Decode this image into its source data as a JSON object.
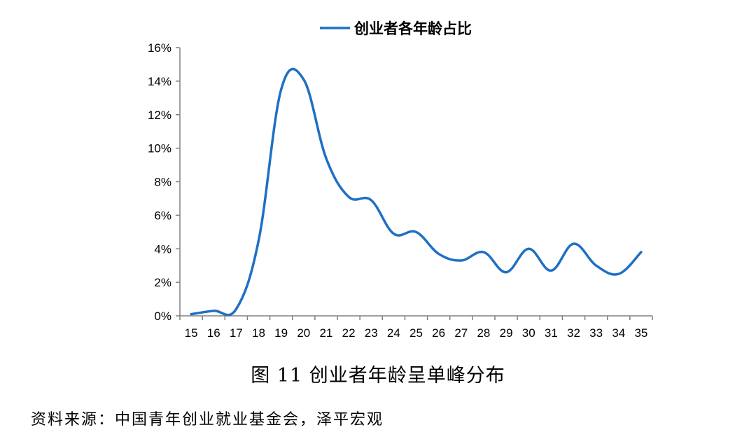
{
  "chart_data": {
    "type": "line",
    "title": "",
    "xlabel": "",
    "ylabel": "",
    "x": [
      15,
      16,
      17,
      18,
      19,
      20,
      21,
      22,
      23,
      24,
      25,
      26,
      27,
      28,
      29,
      30,
      31,
      32,
      33,
      34,
      35
    ],
    "x_tick_labels": [
      "15",
      "16",
      "17",
      "18",
      "19",
      "20",
      "21",
      "22",
      "23",
      "24",
      "25",
      "26",
      "27",
      "28",
      "29",
      "30",
      "31",
      "32",
      "33",
      "34",
      "35"
    ],
    "ylim": [
      0,
      16
    ],
    "y_ticks": [
      0,
      2,
      4,
      6,
      8,
      10,
      12,
      14,
      16
    ],
    "y_tick_labels": [
      "0%",
      "2%",
      "4%",
      "6%",
      "8%",
      "10%",
      "12%",
      "14%",
      "16%"
    ],
    "y_unit": "%",
    "grid": false,
    "legend": {
      "position": "top",
      "entries": [
        "创业者各年龄占比"
      ]
    },
    "series": [
      {
        "name": "创业者各年龄占比",
        "color": "#1f6fc5",
        "values": [
          0.1,
          0.3,
          0.4,
          4.5,
          13.5,
          14.1,
          9.4,
          7.1,
          6.9,
          4.9,
          5.0,
          3.7,
          3.3,
          3.8,
          2.6,
          4.0,
          2.7,
          4.3,
          3.0,
          2.5,
          3.8
        ]
      }
    ]
  },
  "caption": "图 11  创业者年龄呈单峰分布",
  "source": "资料来源：中国青年创业就业基金会，泽平宏观"
}
